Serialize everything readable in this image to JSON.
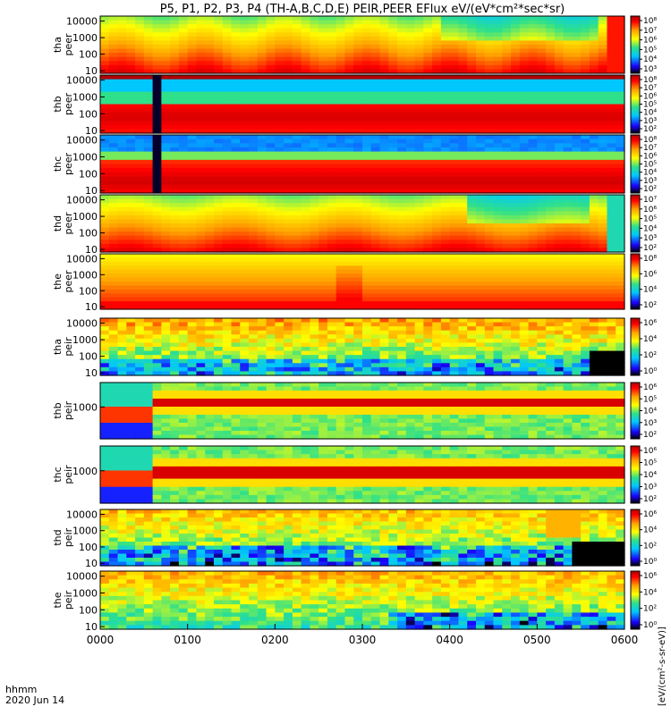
{
  "chart_data": {
    "type": "heatmap",
    "title": "P5, P1, P2, P3, P4 (TH-A,B,C,D,E) PEIR,PEER EFlux eV/(eV*cm²*sec*sr)",
    "xlabel": "hhmm",
    "date_label": "2020 Jun 14",
    "x_ticks": [
      "0000",
      "0100",
      "0200",
      "0300",
      "0400",
      "0500",
      "0600"
    ],
    "xlim": [
      "0000",
      "0600"
    ],
    "y_scale": "log",
    "colorscale": [
      "#000000",
      "#1a00ff",
      "#00c8ff",
      "#2fe08a",
      "#ffff00",
      "#ffa000",
      "#ff0000",
      "#b00000"
    ],
    "colorbar_label": "[eV/(cm²-s-sr-eV)]",
    "panels": [
      {
        "name": "tha-peer",
        "ylabel": [
          "tha",
          "peer"
        ],
        "y_ticks": [
          "10",
          "100",
          "1000",
          "10000"
        ],
        "ylim": [
          7,
          20000
        ],
        "cb_ticks": [
          "10⁸",
          "10⁷",
          "10⁶",
          "10⁵",
          "10⁴",
          "10³"
        ],
        "cb_range": [
          3,
          8
        ]
      },
      {
        "name": "thb-peer",
        "ylabel": [
          "thb",
          "peer"
        ],
        "y_ticks": [
          "10",
          "100",
          "1000",
          "10000"
        ],
        "ylim": [
          7,
          20000
        ],
        "cb_ticks": [
          "10⁸",
          "10⁷",
          "10⁶",
          "10⁵",
          "10⁴",
          "10³",
          "10²"
        ],
        "cb_range": [
          2,
          8
        ]
      },
      {
        "name": "thc-peer",
        "ylabel": [
          "thc",
          "peer"
        ],
        "y_ticks": [
          "10",
          "100",
          "1000",
          "10000"
        ],
        "ylim": [
          7,
          20000
        ],
        "cb_ticks": [
          "10⁸",
          "10⁷",
          "10⁶",
          "10⁵",
          "10⁴",
          "10³",
          "10²"
        ],
        "cb_range": [
          2,
          8
        ]
      },
      {
        "name": "thd-peer",
        "ylabel": [
          "thd",
          "peer"
        ],
        "y_ticks": [
          "10",
          "100",
          "1000",
          "10000"
        ],
        "ylim": [
          7,
          20000
        ],
        "cb_ticks": [
          "10⁷",
          "10⁶",
          "10⁵",
          "10⁴",
          "10³",
          "10²"
        ],
        "cb_range": [
          2,
          7
        ]
      },
      {
        "name": "the-peer",
        "ylabel": [
          "the",
          "peer"
        ],
        "y_ticks": [
          "10",
          "100",
          "1000",
          "10000"
        ],
        "ylim": [
          7,
          20000
        ],
        "cb_ticks": [
          "10⁸",
          "10⁶",
          "10⁴",
          "10²"
        ],
        "cb_range": [
          2,
          8
        ]
      },
      {
        "name": "tha-peir",
        "ylabel": [
          "tha",
          "peir"
        ],
        "y_ticks": [
          "10",
          "100",
          "1000",
          "10000"
        ],
        "ylim": [
          7,
          20000
        ],
        "cb_ticks": [
          "10⁶",
          "10⁴",
          "10²",
          "10⁰"
        ],
        "cb_range": [
          0,
          7
        ]
      },
      {
        "name": "thb-peir",
        "ylabel": [
          "thb",
          "peir"
        ],
        "y_ticks": [
          "1000"
        ],
        "ylim": [
          20,
          20000
        ],
        "cb_ticks": [
          "10⁶",
          "10⁵",
          "10⁴",
          "10³",
          "10²"
        ],
        "cb_range": [
          1.5,
          6.5
        ]
      },
      {
        "name": "thc-peir",
        "ylabel": [
          "thc",
          "peir"
        ],
        "y_ticks": [
          "1000"
        ],
        "ylim": [
          20,
          20000
        ],
        "cb_ticks": [
          "10⁶",
          "10⁵",
          "10⁴",
          "10³",
          "10²"
        ],
        "cb_range": [
          1.5,
          6.5
        ]
      },
      {
        "name": "thd-peir",
        "ylabel": [
          "thd",
          "peir"
        ],
        "y_ticks": [
          "10",
          "100",
          "1000",
          "10000"
        ],
        "ylim": [
          7,
          20000
        ],
        "cb_ticks": [
          "10⁶",
          "10⁴",
          "10²",
          "10⁰"
        ],
        "cb_range": [
          0,
          7
        ]
      },
      {
        "name": "the-peir",
        "ylabel": [
          "the",
          "peir"
        ],
        "y_ticks": [
          "10",
          "100",
          "1000",
          "10000"
        ],
        "ylim": [
          7,
          20000
        ],
        "cb_ticks": [
          "10⁶",
          "10⁴",
          "10²",
          "10⁰"
        ],
        "cb_range": [
          0,
          7
        ]
      }
    ]
  }
}
